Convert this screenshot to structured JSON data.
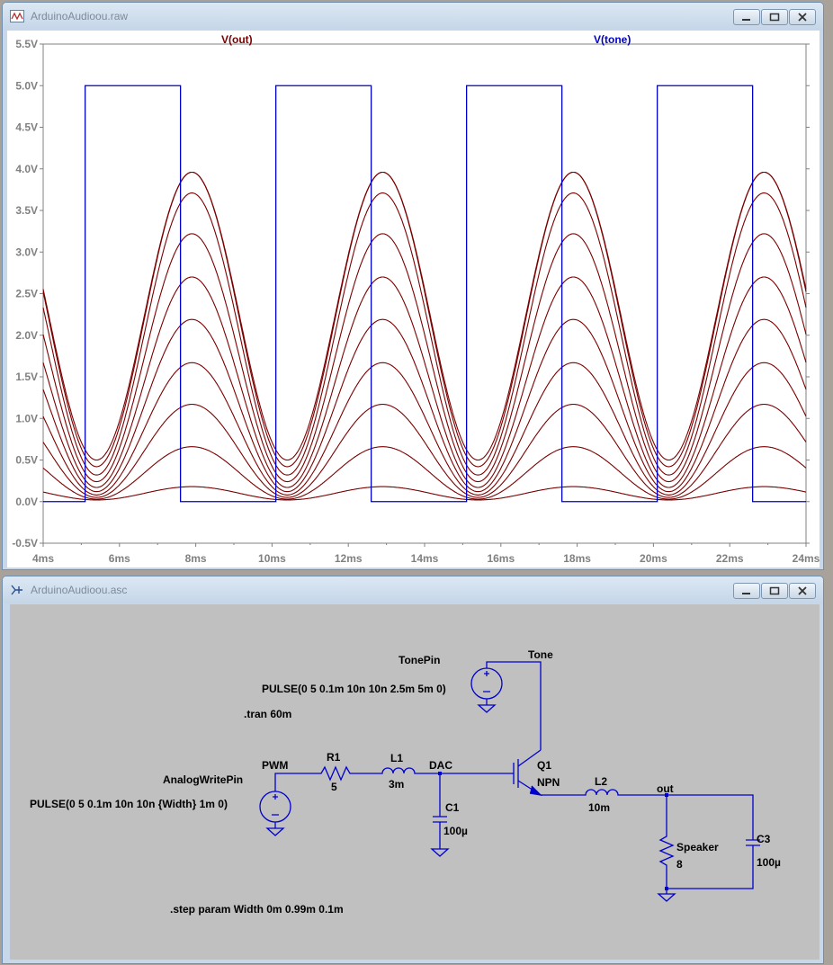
{
  "waveform_window": {
    "title": "ArduinoAudioou.raw",
    "icon": "waveform-file-icon",
    "buttons": [
      "minimize",
      "restore",
      "close"
    ]
  },
  "schematic_window": {
    "title": "ArduinoAudioou.asc",
    "icon": "schematic-file-icon",
    "buttons": [
      "minimize",
      "restore",
      "close"
    ]
  },
  "colors": {
    "vout": "#7b0000",
    "vtone": "#0000cc",
    "wire": "#0000cc",
    "plot_bg": "#ffffff",
    "schematic_bg": "#c0c0c0",
    "axis_text": "#808080"
  },
  "chart_data": {
    "type": "line",
    "title": "",
    "xlabel": "",
    "ylabel": "",
    "xlim": [
      4,
      24
    ],
    "ylim": [
      -0.5,
      5.5
    ],
    "x_unit": "ms",
    "y_unit": "V",
    "xticks": [
      "4ms",
      "6ms",
      "8ms",
      "10ms",
      "12ms",
      "14ms",
      "16ms",
      "18ms",
      "20ms",
      "22ms",
      "24ms"
    ],
    "yticks": [
      "-0.5V",
      "0.0V",
      "0.5V",
      "1.0V",
      "1.5V",
      "2.0V",
      "2.5V",
      "3.0V",
      "3.5V",
      "4.0V",
      "4.5V",
      "5.0V",
      "5.5V"
    ],
    "grid": false,
    "legend": "top",
    "series": [
      {
        "name": "V(tone)",
        "kind": "square",
        "low": 0,
        "high": 5,
        "rise_times_ms": [
          5.1,
          10.1,
          15.1,
          20.1
        ],
        "fall_times_ms": [
          7.6,
          12.6,
          17.6,
          22.6
        ]
      },
      {
        "name": "V(out)",
        "kind": "stepped_family",
        "period_ms": 5,
        "peak_time_ms": 7.9,
        "trough_time_ms": 5.4,
        "step_count": 10,
        "peaks": [
          0.18,
          0.66,
          1.17,
          1.67,
          2.19,
          2.7,
          3.22,
          3.71,
          3.96,
          3.96
        ],
        "troughs": [
          0.02,
          0.03,
          0.05,
          0.08,
          0.12,
          0.17,
          0.24,
          0.32,
          0.42,
          0.5
        ]
      }
    ]
  },
  "schematic": {
    "labels": {
      "tonepin": "TonePin",
      "tone_pulse": "PULSE(0 5 0.1m 10n 10n 2.5m 5m 0)",
      "tran": ".tran 60m",
      "tone_net": "Tone",
      "analogwritepin": "AnalogWritePin",
      "pwm_pulse": "PULSE(0 5 0.1m 10n 10n {Width} 1m 0)",
      "pwm_net": "PWM",
      "r1_name": "R1",
      "r1_value": "5",
      "l1_name": "L1",
      "l1_value": "3m",
      "dac_net": "DAC",
      "c1_name": "C1",
      "c1_value": "100µ",
      "q1_name": "Q1",
      "q1_value": "NPN",
      "l2_name": "L2",
      "l2_value": "10m",
      "out_net": "out",
      "speaker_name": "Speaker",
      "speaker_value": "8",
      "c3_name": "C3",
      "c3_value": "100µ",
      "step": ".step param Width 0m 0.99m 0.1m"
    }
  }
}
